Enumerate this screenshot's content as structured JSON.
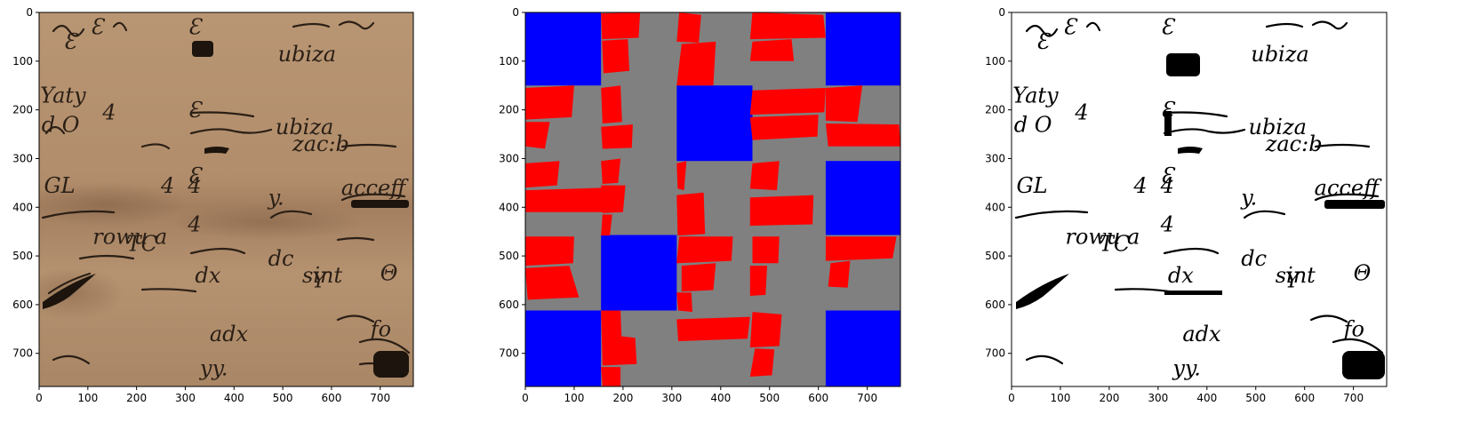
{
  "figure": {
    "axes": [
      {
        "id": "manuscript",
        "xticks": [
          "0",
          "100",
          "200",
          "300",
          "400",
          "500",
          "600",
          "700"
        ],
        "yticks": [
          "0",
          "100",
          "200",
          "300",
          "400",
          "500",
          "600",
          "700"
        ]
      },
      {
        "id": "segmentation",
        "xticks": [
          "0",
          "100",
          "200",
          "300",
          "400",
          "500",
          "600",
          "700"
        ],
        "yticks": [
          "0",
          "100",
          "200",
          "300",
          "400",
          "500",
          "600",
          "700"
        ]
      },
      {
        "id": "binarized",
        "xticks": [
          "0",
          "100",
          "200",
          "300",
          "400",
          "500",
          "600",
          "700"
        ],
        "yticks": [
          "0",
          "100",
          "200",
          "300",
          "400",
          "500",
          "600",
          "700"
        ]
      }
    ],
    "image_extent": [
      0,
      768
    ],
    "colors": {
      "parchment": "#b89473",
      "ink": "#2a1f16",
      "background": "#808080",
      "block": "#0000ff",
      "region": "#ff0000",
      "binary_fg": "#000000",
      "binary_bg": "#ffffff"
    },
    "manuscript_text": [
      "Ɛ",
      "Ɛ",
      "Ɛ",
      "Ɛ",
      "Ɛ",
      "4",
      "4",
      "4",
      "4",
      "dc",
      "Y",
      "y.",
      "yy.",
      "Θ",
      "sint",
      "Yaty",
      "d O",
      "ubiza",
      "ubiza",
      "zac:b",
      "acceff",
      "rowu a",
      "TC",
      "dx",
      "adx",
      "GL",
      "fo"
    ]
  }
}
